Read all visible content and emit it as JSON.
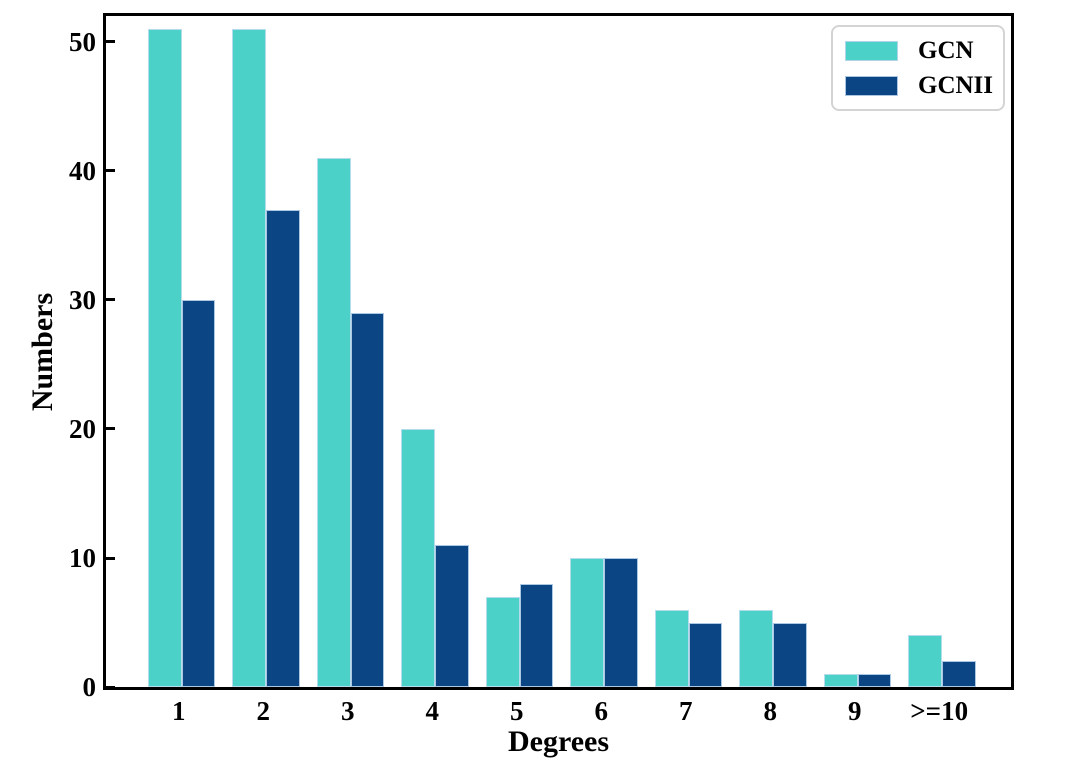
{
  "figure": {
    "background_color": "#ffffff",
    "axis_color": "#000000",
    "bar_edge_color": "#cfe0f2",
    "legend_border_color": "#d4d4d4"
  },
  "chart_data": {
    "type": "bar",
    "title": "",
    "xlabel": "Degrees",
    "ylabel": "Numbers",
    "categories": [
      "1",
      "2",
      "3",
      "4",
      "5",
      "6",
      "7",
      "8",
      "9",
      ">=10"
    ],
    "series": [
      {
        "name": "GCN",
        "color": "#4CD1C8",
        "values": [
          51,
          51,
          41,
          20,
          7,
          10,
          6,
          6,
          1,
          4
        ]
      },
      {
        "name": "GCNII",
        "color": "#0C4584",
        "values": [
          30,
          37,
          29,
          11,
          8,
          10,
          5,
          5,
          1,
          2
        ]
      }
    ],
    "yticks": [
      0,
      10,
      20,
      30,
      40,
      50
    ],
    "ylim": [
      0,
      52
    ],
    "grid": false,
    "legend_position": "upper-right",
    "tick_direction": "in",
    "bar_width_units": 0.4
  }
}
